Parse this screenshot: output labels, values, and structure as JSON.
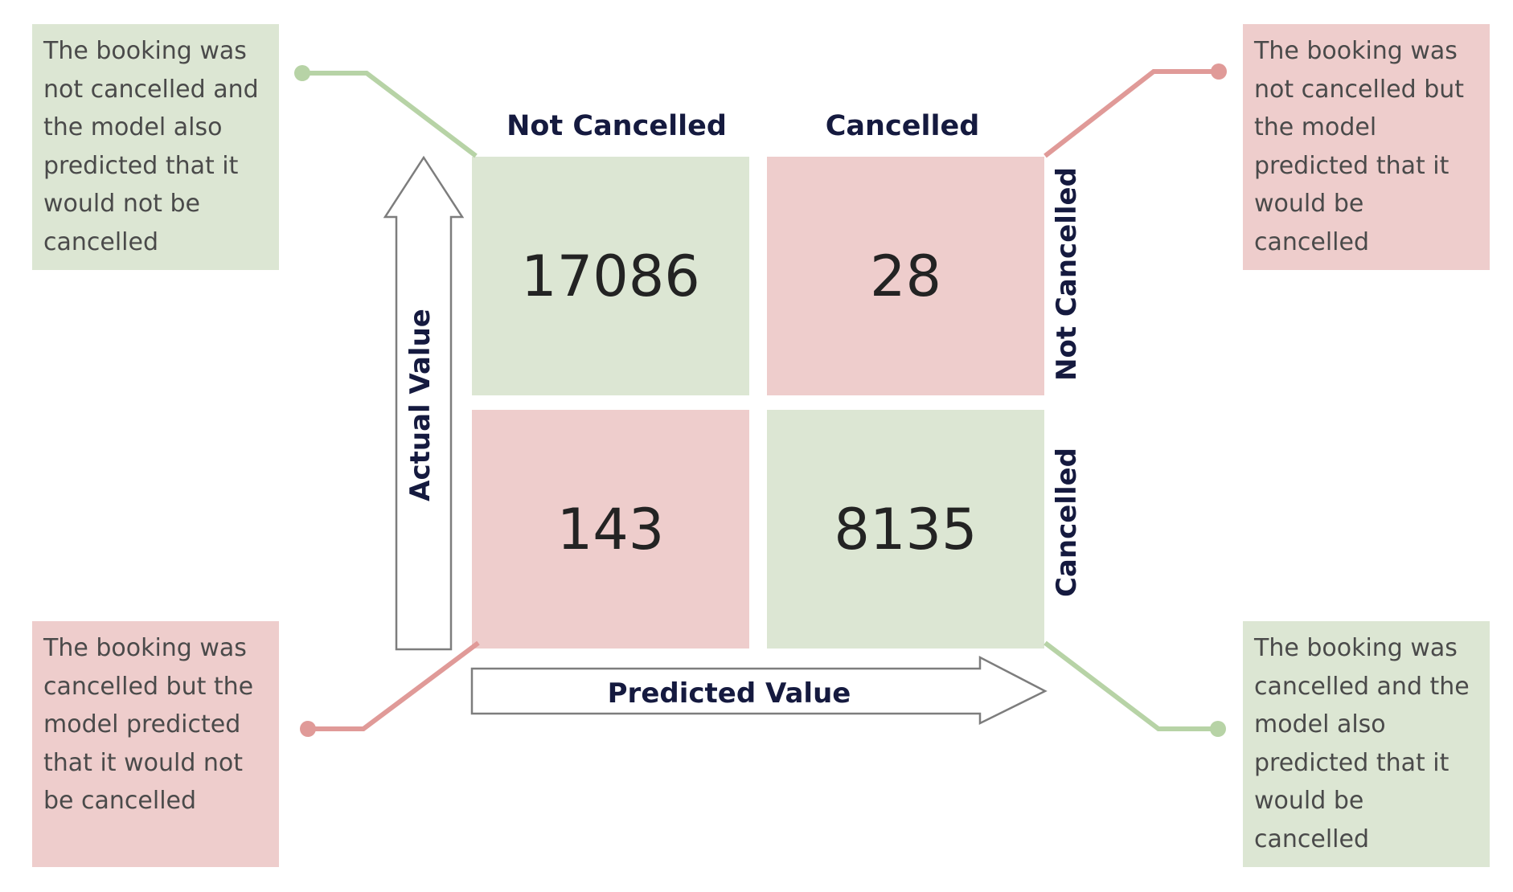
{
  "columns": {
    "left": "Not Cancelled",
    "right": "Cancelled"
  },
  "rows": {
    "top": "Not Cancelled",
    "bottom": "Cancelled"
  },
  "axes": {
    "vertical": "Actual Value",
    "horizontal": "Predicted Value"
  },
  "matrix": {
    "top_left": "17086",
    "top_right": "28",
    "bottom_left": "143",
    "bottom_right": "8135"
  },
  "notes": {
    "top_left": "The booking was\nnot cancelled and\nthe model also\npredicted that it\nwould not be\ncancelled",
    "top_right": "The booking was\nnot cancelled but\nthe model\npredicted that it\nwould be\ncancelled",
    "bottom_left": "The booking was\ncancelled but the\nmodel predicted\nthat it would not\nbe cancelled",
    "bottom_right": "The booking was\ncancelled and the\nmodel also\npredicted that it\nwould be\ncancelled"
  },
  "colors": {
    "correct": "#dce6d3",
    "incorrect": "#eecdcc",
    "correct_line": "#b7d3a6",
    "incorrect_line": "#e09a98"
  }
}
